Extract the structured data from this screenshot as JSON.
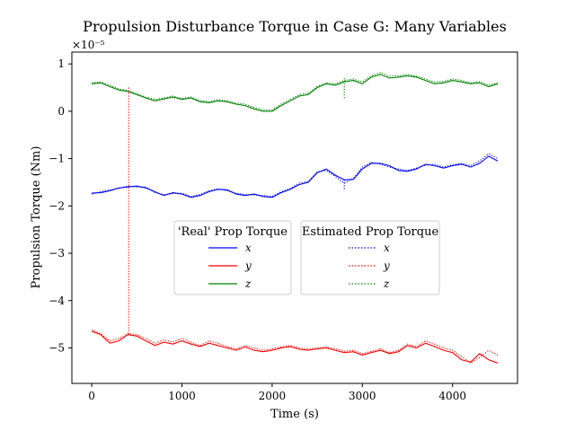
{
  "chart_data": {
    "type": "line",
    "title": "Propulsion Disturbance Torque in Case G: Many Variables",
    "xlabel": "Time (s)",
    "ylabel": "Propulsion Torque (Nm)",
    "y_scale_label": "×10⁻⁵",
    "xlim": [
      -220,
      4720
    ],
    "ylim": [
      -5.75,
      1.25
    ],
    "x_ticks": [
      0,
      1000,
      2000,
      3000,
      4000
    ],
    "x_tick_labels": [
      "0",
      "1000",
      "2000",
      "3000",
      "4000"
    ],
    "y_ticks": [
      1,
      0,
      -1,
      -2,
      -3,
      -4,
      -5
    ],
    "y_tick_labels": [
      "1",
      "0",
      "−1",
      "−2",
      "−3",
      "−4",
      "−5"
    ],
    "grid": false,
    "legends": [
      {
        "title": "'Real' Prop Torque",
        "style": "solid",
        "entries": [
          "x",
          "y",
          "z"
        ]
      },
      {
        "title": "Estimated Prop Torque",
        "style": "dotted",
        "entries": [
          "x",
          "y",
          "z"
        ]
      }
    ],
    "colors": {
      "x": "#0000ff",
      "y": "#ff0000",
      "z": "#008000"
    },
    "series": [
      {
        "name": "x",
        "style": "solid",
        "color": "#0000ff",
        "x": [
          0,
          100,
          200,
          300,
          400,
          500,
          600,
          700,
          800,
          900,
          1000,
          1100,
          1200,
          1300,
          1400,
          1500,
          1600,
          1700,
          1800,
          1900,
          2000,
          2100,
          2200,
          2300,
          2400,
          2500,
          2600,
          2700,
          2800,
          2900,
          3000,
          3100,
          3200,
          3300,
          3400,
          3500,
          3600,
          3700,
          3800,
          3900,
          4000,
          4100,
          4200,
          4300,
          4400,
          4500
        ],
        "y": [
          -1.73,
          -1.72,
          -1.68,
          -1.62,
          -1.6,
          -1.58,
          -1.62,
          -1.7,
          -1.78,
          -1.72,
          -1.75,
          -1.82,
          -1.78,
          -1.7,
          -1.65,
          -1.66,
          -1.75,
          -1.78,
          -1.75,
          -1.8,
          -1.82,
          -1.72,
          -1.65,
          -1.55,
          -1.5,
          -1.3,
          -1.22,
          -1.35,
          -1.45,
          -1.44,
          -1.22,
          -1.1,
          -1.1,
          -1.15,
          -1.25,
          -1.27,
          -1.22,
          -1.12,
          -1.15,
          -1.2,
          -1.15,
          -1.12,
          -1.18,
          -1.1,
          -0.95,
          -1.05
        ]
      },
      {
        "name": "y",
        "style": "solid",
        "color": "#ff0000",
        "x": [
          0,
          100,
          200,
          300,
          400,
          500,
          600,
          700,
          800,
          900,
          1000,
          1100,
          1200,
          1300,
          1400,
          1500,
          1600,
          1700,
          1800,
          1900,
          2000,
          2100,
          2200,
          2300,
          2400,
          2500,
          2600,
          2700,
          2800,
          2900,
          3000,
          3100,
          3200,
          3300,
          3400,
          3500,
          3600,
          3700,
          3800,
          3900,
          4000,
          4100,
          4200,
          4300,
          4400,
          4500
        ],
        "y": [
          -4.65,
          -4.72,
          -4.9,
          -4.85,
          -4.72,
          -4.75,
          -4.85,
          -4.95,
          -4.88,
          -4.92,
          -4.85,
          -4.92,
          -4.97,
          -4.9,
          -4.95,
          -5.0,
          -5.05,
          -4.98,
          -5.05,
          -5.08,
          -5.05,
          -5.0,
          -4.97,
          -5.03,
          -5.05,
          -5.02,
          -5.0,
          -5.05,
          -5.1,
          -5.08,
          -5.15,
          -5.1,
          -5.05,
          -5.12,
          -5.08,
          -4.95,
          -5.0,
          -4.9,
          -4.97,
          -5.05,
          -5.1,
          -5.25,
          -5.3,
          -5.12,
          -5.25,
          -5.32
        ]
      },
      {
        "name": "z",
        "style": "solid",
        "color": "#008000",
        "x": [
          0,
          100,
          200,
          300,
          400,
          500,
          600,
          700,
          800,
          900,
          1000,
          1100,
          1200,
          1300,
          1400,
          1500,
          1600,
          1700,
          1800,
          1900,
          2000,
          2100,
          2200,
          2300,
          2400,
          2500,
          2600,
          2700,
          2800,
          2900,
          3000,
          3100,
          3200,
          3300,
          3400,
          3500,
          3600,
          3700,
          3800,
          3900,
          4000,
          4100,
          4200,
          4300,
          4400,
          4500
        ],
        "y": [
          0.58,
          0.6,
          0.52,
          0.45,
          0.42,
          0.35,
          0.28,
          0.22,
          0.26,
          0.3,
          0.25,
          0.28,
          0.2,
          0.18,
          0.22,
          0.2,
          0.15,
          0.12,
          0.05,
          0.0,
          0.0,
          0.12,
          0.22,
          0.32,
          0.35,
          0.5,
          0.58,
          0.55,
          0.62,
          0.65,
          0.58,
          0.72,
          0.78,
          0.7,
          0.72,
          0.75,
          0.72,
          0.65,
          0.58,
          0.6,
          0.65,
          0.62,
          0.58,
          0.6,
          0.52,
          0.58
        ]
      },
      {
        "name": "x",
        "style": "dotted",
        "color": "#0000ff",
        "x": [
          0,
          100,
          200,
          300,
          400,
          500,
          600,
          700,
          800,
          900,
          1000,
          1100,
          1200,
          1300,
          1400,
          1500,
          1600,
          1700,
          1800,
          1900,
          2000,
          2100,
          2200,
          2300,
          2400,
          2500,
          2600,
          2700,
          2800,
          2900,
          3000,
          3100,
          3200,
          3300,
          3400,
          3500,
          3600,
          3700,
          3800,
          3900,
          4000,
          4100,
          4200,
          4300,
          4400,
          4500
        ],
        "y": [
          -1.75,
          -1.7,
          -1.66,
          -1.63,
          -1.58,
          -1.6,
          -1.6,
          -1.72,
          -1.76,
          -1.74,
          -1.73,
          -1.8,
          -1.76,
          -1.68,
          -1.64,
          -1.68,
          -1.73,
          -1.76,
          -1.77,
          -1.78,
          -1.8,
          -1.7,
          -1.63,
          -1.52,
          -1.48,
          -1.28,
          -1.25,
          -1.38,
          -1.52,
          -1.42,
          -1.18,
          -1.08,
          -1.12,
          -1.18,
          -1.22,
          -1.25,
          -1.2,
          -1.14,
          -1.12,
          -1.18,
          -1.13,
          -1.1,
          -1.15,
          -1.05,
          -0.9,
          -1.0
        ]
      },
      {
        "name": "y",
        "style": "dotted",
        "color": "#ff0000",
        "x": [
          0,
          100,
          200,
          300,
          400,
          500,
          600,
          700,
          800,
          900,
          1000,
          1100,
          1200,
          1300,
          1400,
          1500,
          1600,
          1700,
          1800,
          1900,
          2000,
          2100,
          2200,
          2300,
          2400,
          2500,
          2600,
          2700,
          2800,
          2900,
          3000,
          3100,
          3200,
          3300,
          3400,
          3500,
          3600,
          3700,
          3800,
          3900,
          4000,
          4100,
          4200,
          4300,
          4400,
          4500
        ],
        "y": [
          -4.62,
          -4.7,
          -4.85,
          -4.8,
          -4.7,
          -4.72,
          -4.8,
          -4.9,
          -4.83,
          -4.88,
          -4.8,
          -4.88,
          -4.95,
          -4.85,
          -4.9,
          -4.97,
          -5.02,
          -4.95,
          -5.0,
          -5.05,
          -5.02,
          -4.98,
          -4.95,
          -5.0,
          -5.02,
          -5.0,
          -4.98,
          -5.02,
          -5.07,
          -5.05,
          -5.12,
          -5.07,
          -5.02,
          -5.1,
          -5.05,
          -4.92,
          -4.97,
          -4.85,
          -4.92,
          -5.0,
          -5.05,
          -5.18,
          -5.32,
          -5.2,
          -5.05,
          -5.15
        ]
      },
      {
        "name": "z",
        "style": "dotted",
        "color": "#008000",
        "x": [
          0,
          100,
          200,
          300,
          400,
          500,
          600,
          700,
          800,
          900,
          1000,
          1100,
          1200,
          1300,
          1400,
          1500,
          1600,
          1700,
          1800,
          1900,
          2000,
          2100,
          2200,
          2300,
          2400,
          2500,
          2600,
          2700,
          2800,
          2900,
          3000,
          3100,
          3200,
          3300,
          3400,
          3500,
          3600,
          3700,
          3800,
          3900,
          4000,
          4100,
          4200,
          4300,
          4400,
          4500
        ],
        "y": [
          0.6,
          0.62,
          0.55,
          0.47,
          0.44,
          0.37,
          0.3,
          0.25,
          0.28,
          0.32,
          0.27,
          0.3,
          0.23,
          0.2,
          0.25,
          0.22,
          0.17,
          0.15,
          0.08,
          0.03,
          0.03,
          0.15,
          0.25,
          0.35,
          0.38,
          0.53,
          0.6,
          0.58,
          0.65,
          0.68,
          0.62,
          0.75,
          0.82,
          0.74,
          0.75,
          0.78,
          0.74,
          0.68,
          0.62,
          0.63,
          0.68,
          0.65,
          0.6,
          0.63,
          0.55,
          0.6
        ]
      },
      {
        "name": "y",
        "style": "dotted",
        "color": "#ff0000",
        "x": [
          410,
          410
        ],
        "y": [
          0.5,
          -4.7
        ]
      },
      {
        "name": "z",
        "style": "dotted",
        "color": "#008000",
        "x": [
          2800,
          2800
        ],
        "y": [
          0.7,
          0.25
        ]
      },
      {
        "name": "x",
        "style": "dotted",
        "color": "#0000ff",
        "x": [
          2800,
          2800
        ],
        "y": [
          -1.45,
          -1.65
        ]
      }
    ]
  }
}
